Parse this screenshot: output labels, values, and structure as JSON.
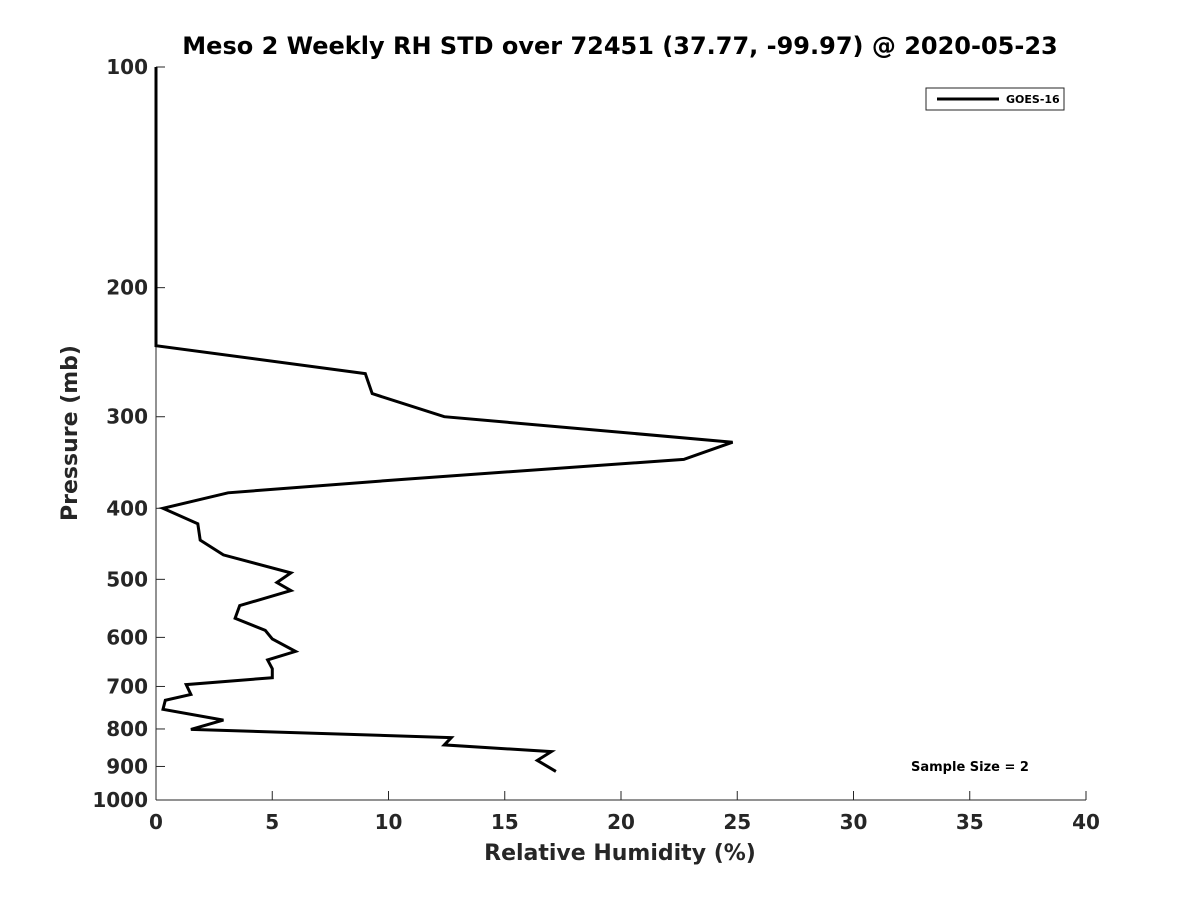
{
  "chart_data": {
    "type": "line",
    "title": "Meso 2 Weekly RH STD over 72451 (37.77, -99.97) @ 2020-05-23",
    "xlabel": "Relative Humidity (%)",
    "ylabel": "Pressure (mb)",
    "xlim": [
      0,
      40
    ],
    "ylim": [
      100,
      1000
    ],
    "yscale": "log",
    "y_reversed": true,
    "grid": false,
    "x_ticks": [
      "0",
      "5",
      "10",
      "15",
      "20",
      "25",
      "30",
      "35",
      "40"
    ],
    "y_ticks": [
      "100",
      "200",
      "300",
      "400",
      "500",
      "600",
      "700",
      "800",
      "900",
      "1000"
    ],
    "legend": {
      "position": "top-right",
      "entries": [
        "GOES-16"
      ]
    },
    "annotation": "Sample Size = 2",
    "series": [
      {
        "name": "GOES-16",
        "color": "#000000",
        "points": [
          [
            0.0,
            100
          ],
          [
            0.0,
            150
          ],
          [
            0.0,
            200
          ],
          [
            0.0,
            240
          ],
          [
            9.0,
            262
          ],
          [
            9.3,
            279
          ],
          [
            12.4,
            300
          ],
          [
            24.8,
            325
          ],
          [
            22.7,
            343
          ],
          [
            10.7,
            365
          ],
          [
            3.1,
            381
          ],
          [
            0.3,
            400
          ],
          [
            1.8,
            420
          ],
          [
            1.9,
            442
          ],
          [
            2.9,
            463
          ],
          [
            5.8,
            490
          ],
          [
            5.2,
            505
          ],
          [
            5.8,
            518
          ],
          [
            3.6,
            543
          ],
          [
            3.4,
            565
          ],
          [
            4.7,
            587
          ],
          [
            5.0,
            603
          ],
          [
            6.0,
            627
          ],
          [
            4.8,
            644
          ],
          [
            5.0,
            662
          ],
          [
            5.0,
            681
          ],
          [
            1.3,
            696
          ],
          [
            1.5,
            718
          ],
          [
            0.4,
            731
          ],
          [
            0.3,
            752
          ],
          [
            2.9,
            778
          ],
          [
            1.5,
            801
          ],
          [
            12.7,
            822
          ],
          [
            12.4,
            841
          ],
          [
            17.0,
            859
          ],
          [
            16.4,
            883
          ],
          [
            17.2,
            914
          ]
        ]
      }
    ]
  }
}
